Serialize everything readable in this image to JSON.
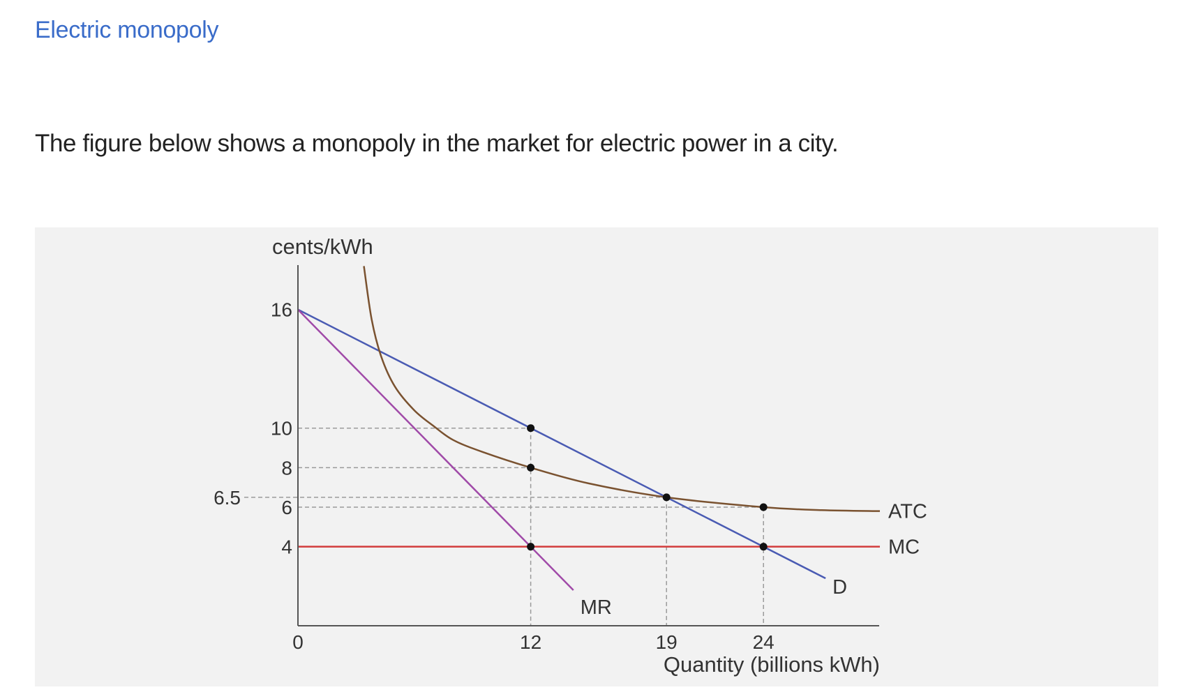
{
  "header": {
    "link_label": "Electric monopoly"
  },
  "intro": {
    "text": "The figure below shows a monopoly in the market for electric power in a city."
  },
  "colors": {
    "link": "#3a6cc9",
    "panel_background": "#f2f2f2",
    "demand": "#4a5bb3",
    "marginal_revenue": "#a04aa8",
    "average_total_cost": "#7a5230",
    "marginal_cost": "#d23c3c",
    "axis": "#555555",
    "guides": "#9a9a9a"
  },
  "chart_data": {
    "type": "line",
    "ylabel": "cents/kWh",
    "xlabel": "Quantity (billions kWh)",
    "xlim": [
      0,
      30
    ],
    "ylim": [
      0,
      17
    ],
    "x_ticks": [
      {
        "value": 0,
        "label": "0"
      },
      {
        "value": 12,
        "label": "12"
      },
      {
        "value": 19,
        "label": "19"
      },
      {
        "value": 24,
        "label": "24"
      }
    ],
    "y_ticks": [
      {
        "value": 16,
        "label": "16"
      },
      {
        "value": 10,
        "label": "10"
      },
      {
        "value": 8,
        "label": "8"
      },
      {
        "value": 6,
        "label": "6"
      },
      {
        "value": 4,
        "label": "4"
      }
    ],
    "y_extra_ticks": [
      {
        "value": 6.5,
        "label": "6.5"
      }
    ],
    "series": [
      {
        "name": "D",
        "color_key": "demand",
        "points": [
          [
            0,
            16
          ],
          [
            27.2,
            2.4
          ]
        ]
      },
      {
        "name": "MR",
        "color_key": "marginal_revenue",
        "points": [
          [
            0,
            16
          ],
          [
            14.2,
            1.8
          ]
        ]
      },
      {
        "name": "MC",
        "color_key": "marginal_cost",
        "points": [
          [
            0,
            4
          ],
          [
            30,
            4
          ]
        ]
      },
      {
        "name": "ATC",
        "color_key": "average_total_cost",
        "points": [
          [
            3.4,
            18.2
          ],
          [
            3.8,
            15.5
          ],
          [
            4.3,
            13.6
          ],
          [
            5,
            12.1
          ],
          [
            6,
            10.9
          ],
          [
            7,
            10.1
          ],
          [
            8,
            9.4
          ],
          [
            9.5,
            8.8
          ],
          [
            12,
            8
          ],
          [
            15,
            7.2
          ],
          [
            19,
            6.5
          ],
          [
            24,
            6
          ],
          [
            27,
            5.85
          ],
          [
            30,
            5.8
          ]
        ]
      }
    ],
    "points": [
      {
        "x": 12,
        "y": 10
      },
      {
        "x": 12,
        "y": 8
      },
      {
        "x": 12,
        "y": 4
      },
      {
        "x": 19,
        "y": 6.5
      },
      {
        "x": 24,
        "y": 6
      },
      {
        "x": 24,
        "y": 4
      }
    ],
    "guide_lines": {
      "horizontal": [
        10,
        8,
        6.5,
        6
      ],
      "vertical": [
        12,
        19,
        24
      ]
    },
    "annotations": [
      {
        "text": "ATC",
        "series": "ATC"
      },
      {
        "text": "MC",
        "series": "MC"
      },
      {
        "text": "MR",
        "series": "MR"
      },
      {
        "text": "D",
        "series": "D"
      }
    ],
    "grid": false,
    "legend": "none"
  }
}
